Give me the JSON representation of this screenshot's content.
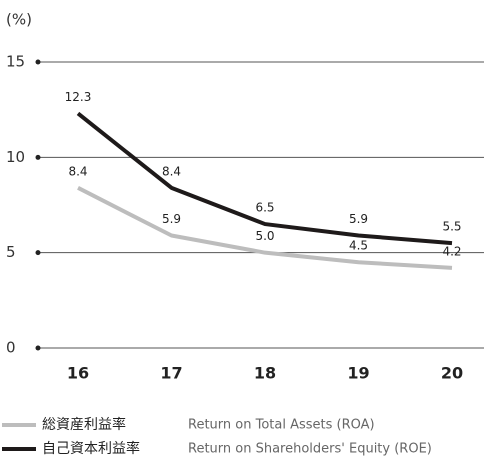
{
  "chart_data": {
    "type": "line",
    "y_label": "(%)",
    "categories": [
      "16",
      "17",
      "18",
      "19",
      "20"
    ],
    "series": [
      {
        "name": "総資産利益率",
        "description": "Return on Total Assets (ROA)",
        "color": "#bdbdbd",
        "values": [
          8.4,
          5.9,
          5.0,
          4.5,
          4.2
        ],
        "value_labels": [
          "8.4",
          "5.9",
          "5.0",
          "4.5",
          "4.2"
        ]
      },
      {
        "name": "自己資本利益率",
        "description": "Return on Shareholders' Equity (ROE)",
        "color": "#1e1a1a",
        "values": [
          12.3,
          8.4,
          6.5,
          5.9,
          5.5
        ],
        "value_labels": [
          "12.3",
          "8.4",
          "6.5",
          "5.9",
          "5.5"
        ]
      }
    ],
    "ylim": [
      0,
      15
    ],
    "yticks": [
      0,
      5,
      10,
      15
    ],
    "grid": true
  }
}
